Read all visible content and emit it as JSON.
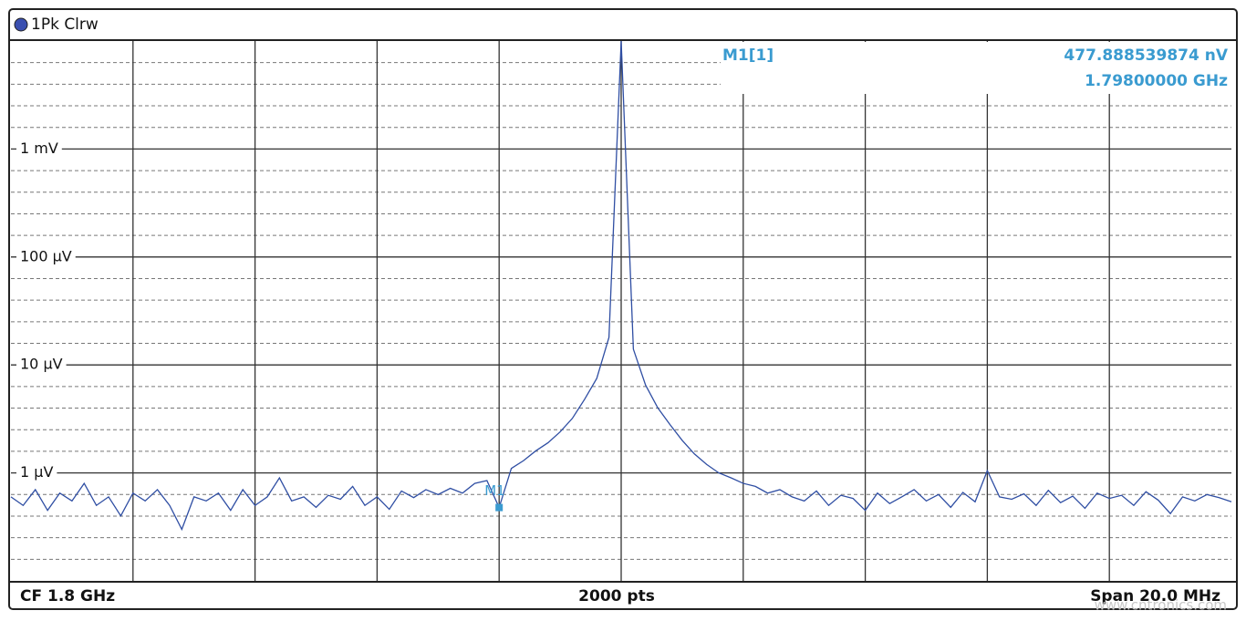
{
  "chart_data": {
    "type": "line",
    "trace_label": "1Pk Clrw",
    "footer_left": "CF 1.8 GHz",
    "footer_center": "2000 pts",
    "footer_right": "Span 20.0 MHz",
    "watermark": "www.cntronics.com",
    "log_scale": true,
    "grid": true,
    "ylim": [
      1e-07,
      0.01
    ],
    "yticks": [
      {
        "value": 0.001,
        "label": "1 mV"
      },
      {
        "value": 0.0001,
        "label": "100 µV"
      },
      {
        "value": 1e-05,
        "label": "10 µV"
      },
      {
        "value": 1e-06,
        "label": "1 µV"
      }
    ],
    "xlim": [
      1.79,
      1.81
    ],
    "x": [
      1.79,
      1.7902,
      1.7904,
      1.7906,
      1.7908,
      1.791,
      1.7912,
      1.7914,
      1.7916,
      1.7918,
      1.792,
      1.7922,
      1.7924,
      1.7926,
      1.7928,
      1.793,
      1.7932,
      1.7934,
      1.7936,
      1.7938,
      1.794,
      1.7942,
      1.7944,
      1.7946,
      1.7948,
      1.795,
      1.7952,
      1.7954,
      1.7956,
      1.7958,
      1.796,
      1.7962,
      1.7964,
      1.7966,
      1.7968,
      1.797,
      1.7972,
      1.7974,
      1.7976,
      1.7978,
      1.798,
      1.7982,
      1.7984,
      1.7986,
      1.7988,
      1.799,
      1.7992,
      1.7994,
      1.7996,
      1.7998,
      1.8,
      1.8002,
      1.8004,
      1.8006,
      1.8008,
      1.801,
      1.8012,
      1.8014,
      1.8016,
      1.8018,
      1.802,
      1.8022,
      1.8024,
      1.8026,
      1.8028,
      1.803,
      1.8032,
      1.8034,
      1.8036,
      1.8038,
      1.804,
      1.8042,
      1.8044,
      1.8046,
      1.8048,
      1.805,
      1.8052,
      1.8054,
      1.8056,
      1.8058,
      1.806,
      1.8062,
      1.8064,
      1.8066,
      1.8068,
      1.807,
      1.8072,
      1.8074,
      1.8076,
      1.8078,
      1.808,
      1.8082,
      1.8084,
      1.8086,
      1.8088,
      1.809,
      1.8092,
      1.8094,
      1.8096,
      1.8098,
      1.81
    ],
    "series": [
      {
        "color": "#2f4ea3",
        "values": [
          6e-07,
          5e-07,
          7e-07,
          4.5e-07,
          6.5e-07,
          5.5e-07,
          8e-07,
          5e-07,
          6e-07,
          4e-07,
          6.5e-07,
          5.5e-07,
          7e-07,
          5e-07,
          3e-07,
          6e-07,
          5.5e-07,
          6.5e-07,
          4.5e-07,
          7e-07,
          5e-07,
          6e-07,
          9e-07,
          5.5e-07,
          6e-07,
          4.8e-07,
          6.2e-07,
          5.7e-07,
          7.5e-07,
          5e-07,
          6e-07,
          4.6e-07,
          6.8e-07,
          5.9e-07,
          7e-07,
          6.3e-07,
          7.2e-07,
          6.5e-07,
          8e-07,
          8.5e-07,
          4.78e-07,
          1.1e-06,
          1.3e-06,
          1.6e-06,
          1.9e-06,
          2.4e-06,
          3.2e-06,
          4.8e-06,
          7.5e-06,
          1.8e-05,
          0.01,
          1.4e-05,
          6.5e-06,
          4e-06,
          2.8e-06,
          2e-06,
          1.5e-06,
          1.2e-06,
          1e-06,
          9e-07,
          8e-07,
          7.5e-07,
          6.5e-07,
          7e-07,
          6e-07,
          5.5e-07,
          6.8e-07,
          5e-07,
          6.2e-07,
          5.8e-07,
          4.5e-07,
          6.5e-07,
          5.2e-07,
          6e-07,
          7e-07,
          5.5e-07,
          6.3e-07,
          4.8e-07,
          6.6e-07,
          5.4e-07,
          1.05e-06,
          6e-07,
          5.7e-07,
          6.4e-07,
          5e-07,
          6.9e-07,
          5.3e-07,
          6.1e-07,
          4.7e-07,
          6.5e-07,
          5.8e-07,
          6.2e-07,
          5e-07,
          6.7e-07,
          5.6e-07,
          4.2e-07,
          6e-07,
          5.5e-07,
          6.3e-07,
          5.9e-07,
          5.4e-07
        ]
      }
    ],
    "marker": {
      "label": "M1",
      "readout_label": "M1[1]",
      "x": 1.798,
      "value": 4.77888539874e-07,
      "value_label": "477.888539874 nV",
      "x_label": "1.79800000 GHz",
      "color": "#3a9bd0"
    }
  }
}
